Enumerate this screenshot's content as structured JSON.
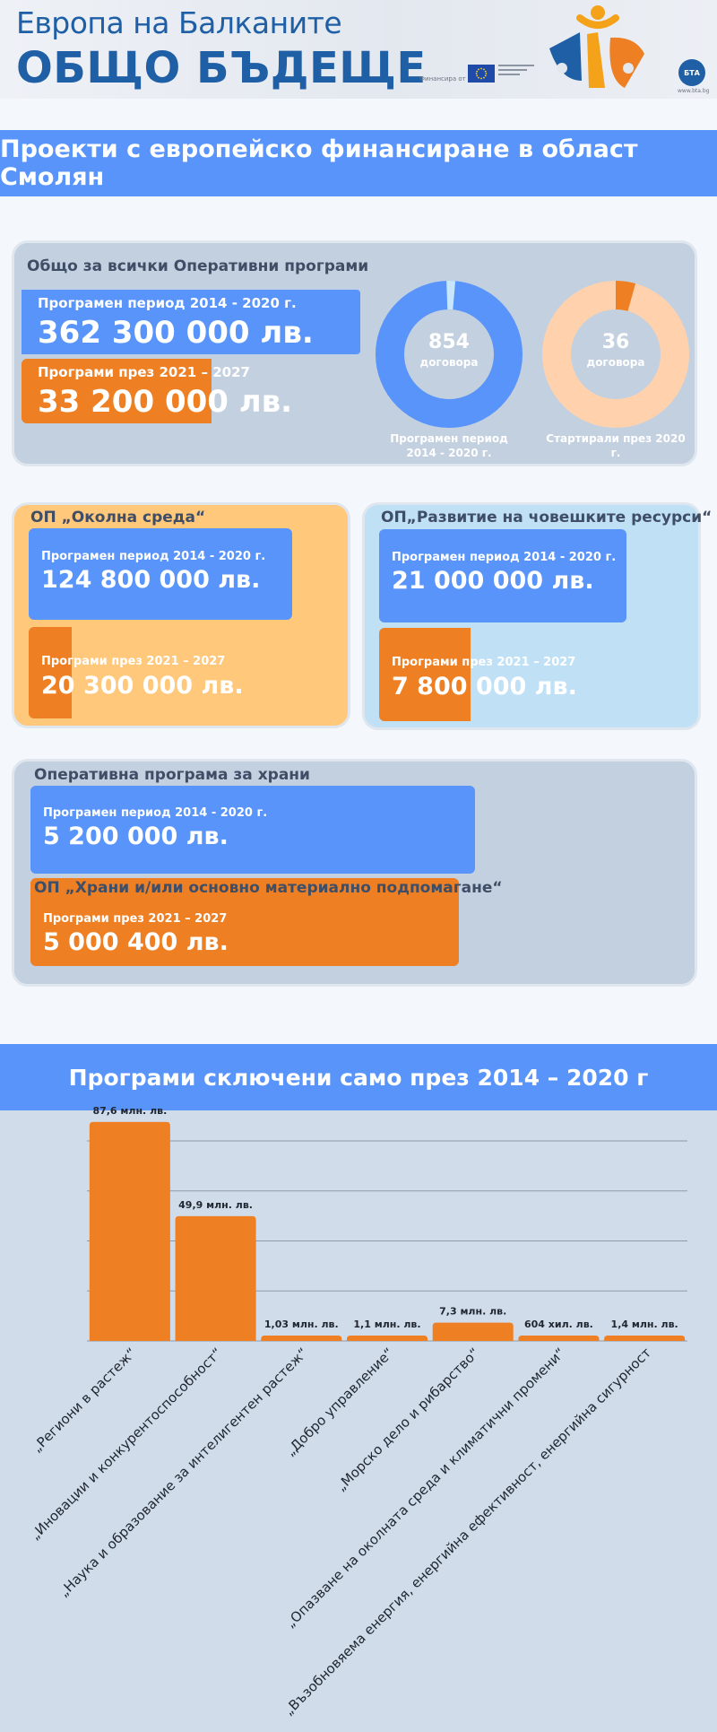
{
  "header": {
    "line1": "Европа на Балканите",
    "line2": "ОБЩО БЪДЕЩЕ",
    "funded_by": "Финансира от",
    "bta_label": "БТА",
    "bta_url": "www.bta.bg"
  },
  "banner_title": "Проекти с европейско финансиране в област Смолян",
  "total": {
    "title": "Общо за всички Оперативни програми",
    "period1_label": "Програмен период 2014 - 2020 г.",
    "period1_value": "362 300 000 лв.",
    "period2_label": "Програми през 2021 – 2027",
    "period2_value": "33 200 000 лв.",
    "donut1": {
      "number": "854",
      "unit": "договора",
      "caption": "Програмен период 2014 - 2020 г.",
      "color": "#5894fa"
    },
    "donut2": {
      "number": "36",
      "unit": "договора",
      "caption": "Стартирали през 2020 г.",
      "color": "#ffd2ad"
    }
  },
  "op_env": {
    "title": "ОП „Околна среда“",
    "period1_label": "Програмен период 2014 - 2020 г.",
    "period1_value": "124 800 000  лв.",
    "period2_label": "Програми през 2021 – 2027",
    "period2_value": "20 300 000 лв."
  },
  "op_hr": {
    "title": "ОП„Развитие на човешките ресурси“",
    "period1_label": "Програмен период 2014 - 2020 г.",
    "period1_value": "21 000 000  лв.",
    "period2_label": "Програми през 2021 – 2027",
    "period2_value": "7 800 000 лв."
  },
  "op_food": {
    "title": "Оперативна програма за храни",
    "period1_label": "Програмен период 2014 - 2020 г.",
    "period1_value": "5 200 000  лв.",
    "title2": "ОП „Храни и/или основно материално подпомагане“",
    "period2_label": "Програми през 2021 – 2027",
    "period2_value": "5 000 400 лв."
  },
  "banner2_title": "Програми сключени само през 2014 – 2020 г",
  "colors": {
    "blue": "#5894fa",
    "orange": "#ee7f22",
    "panel_gray": "#c3d0e0",
    "panel_peach": "#ffc87a",
    "panel_lightblue": "#bfe0f5"
  },
  "chart_data": {
    "type": "bar",
    "categories": [
      "„Региони в растеж“",
      "„Иновации и конкурентоспособност“",
      "„Наука и образование за интелигентен растеж“",
      "„Добро управление“",
      "„Морско дело и рибарство“",
      "„Опазване на околната среда и климатични промени“",
      "„Възобновяема енергия, енергийна ефективност, енергийна сигурност"
    ],
    "values": [
      87.6,
      49.9,
      1.03,
      1.1,
      7.3,
      0.604,
      1.4
    ],
    "value_labels": [
      "87,6 млн. лв.",
      "49,9 млн. лв.",
      "1,03 млн. лв.",
      "1,1 млн. лв.",
      "7,3 млн. лв.",
      "604 хил. лв.",
      "1,4 млн. лв."
    ],
    "ylim": [
      0,
      80
    ],
    "gridlines": [
      20,
      40,
      60,
      80
    ],
    "color": "#ee7f22",
    "grid": true
  }
}
